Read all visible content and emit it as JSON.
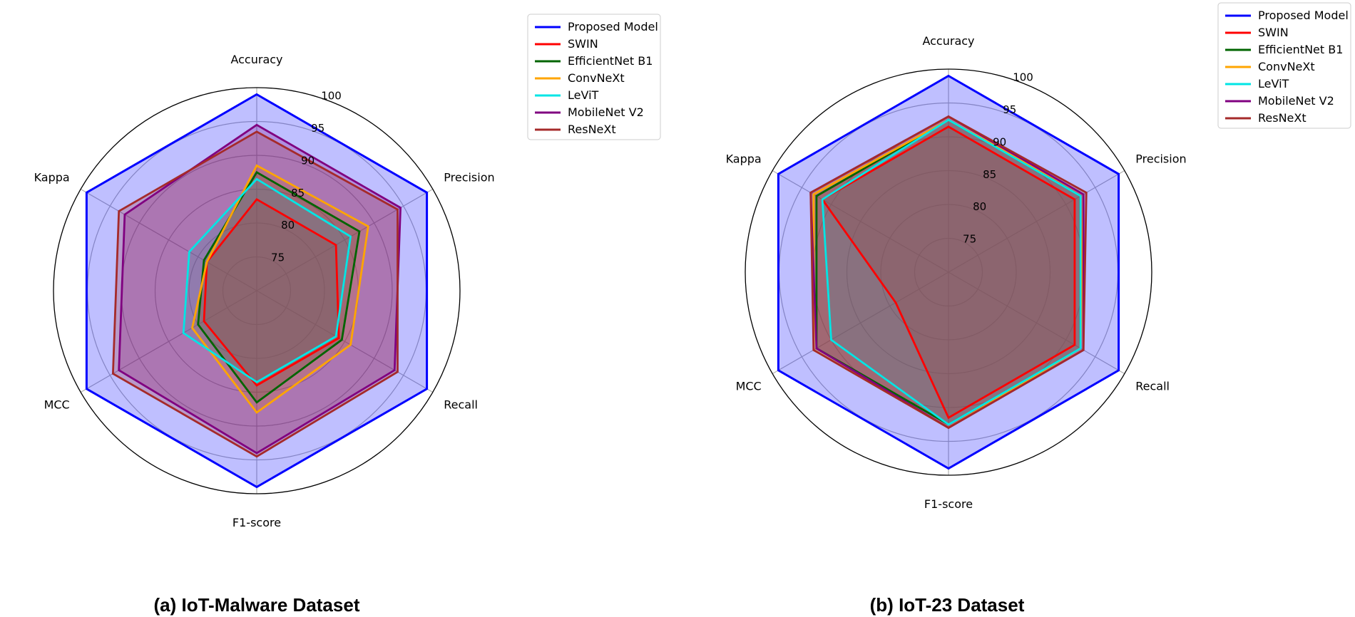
{
  "chart_data": [
    {
      "type": "radar",
      "caption": "(a) IoT-Malware Dataset",
      "axes": [
        "Accuracy",
        "Precision",
        "Recall",
        "F1-score",
        "MCC",
        "Kappa"
      ],
      "ticks": [
        "75",
        "80",
        "85",
        "90",
        "95",
        "100"
      ],
      "rlim": [
        70,
        100
      ],
      "legend_position": "top-right",
      "series": [
        {
          "name": "Proposed Model",
          "color": "#0000ff",
          "values": [
            99,
            99,
            99,
            99,
            99,
            99
          ]
        },
        {
          "name": "SWIN",
          "color": "#ff0000",
          "values": [
            83.5,
            83.5,
            84,
            84,
            79,
            78.5
          ]
        },
        {
          "name": "EfficientNet B1",
          "color": "#006400",
          "values": [
            87.5,
            87.5,
            84.5,
            86.5,
            80,
            79
          ]
        },
        {
          "name": "ConvNeXt",
          "color": "#ffa500",
          "values": [
            88.5,
            89,
            86,
            88,
            81,
            78.5
          ]
        },
        {
          "name": "LeViT",
          "color": "#00e5e5",
          "values": [
            86.5,
            86,
            83.5,
            83.5,
            82.5,
            81.5
          ]
        },
        {
          "name": "MobileNet V2",
          "color": "#800080",
          "values": [
            94.5,
            94.5,
            93.5,
            94,
            93.5,
            92.5
          ]
        },
        {
          "name": "ResNeXt",
          "color": "#a52a2a",
          "values": [
            93.5,
            94,
            94,
            94.5,
            94.5,
            93.5
          ]
        }
      ]
    },
    {
      "type": "radar",
      "caption": "(b) IoT-23 Dataset",
      "axes": [
        "Accuracy",
        "Precision",
        "Recall",
        "F1-score",
        "MCC",
        "Kappa"
      ],
      "ticks": [
        "75",
        "80",
        "85",
        "90",
        "95",
        "100"
      ],
      "rlim": [
        70,
        100
      ],
      "legend_position": "top-right",
      "series": [
        {
          "name": "Proposed Model",
          "color": "#0000ff",
          "values": [
            99,
            99,
            99,
            99,
            99,
            99
          ]
        },
        {
          "name": "SWIN",
          "color": "#ff0000",
          "values": [
            91.5,
            91.5,
            91.5,
            91.5,
            79,
            91.5
          ]
        },
        {
          "name": "EfficientNet B1",
          "color": "#006400",
          "values": [
            92.5,
            92.5,
            92.5,
            92.5,
            92.5,
            92.5
          ]
        },
        {
          "name": "ConvNeXt",
          "color": "#ffa500",
          "values": [
            92.5,
            93,
            92.5,
            93,
            93,
            93
          ]
        },
        {
          "name": "LeViT",
          "color": "#00e5e5",
          "values": [
            92.5,
            92.5,
            92.5,
            92.5,
            90,
            91.5
          ]
        },
        {
          "name": "MobileNet V2",
          "color": "#800080",
          "values": [
            93,
            93,
            93,
            93,
            92.5,
            93.5
          ]
        },
        {
          "name": "ResNeXt",
          "color": "#a52a2a",
          "values": [
            93,
            93.5,
            93,
            93,
            93,
            93.5
          ]
        }
      ]
    }
  ]
}
